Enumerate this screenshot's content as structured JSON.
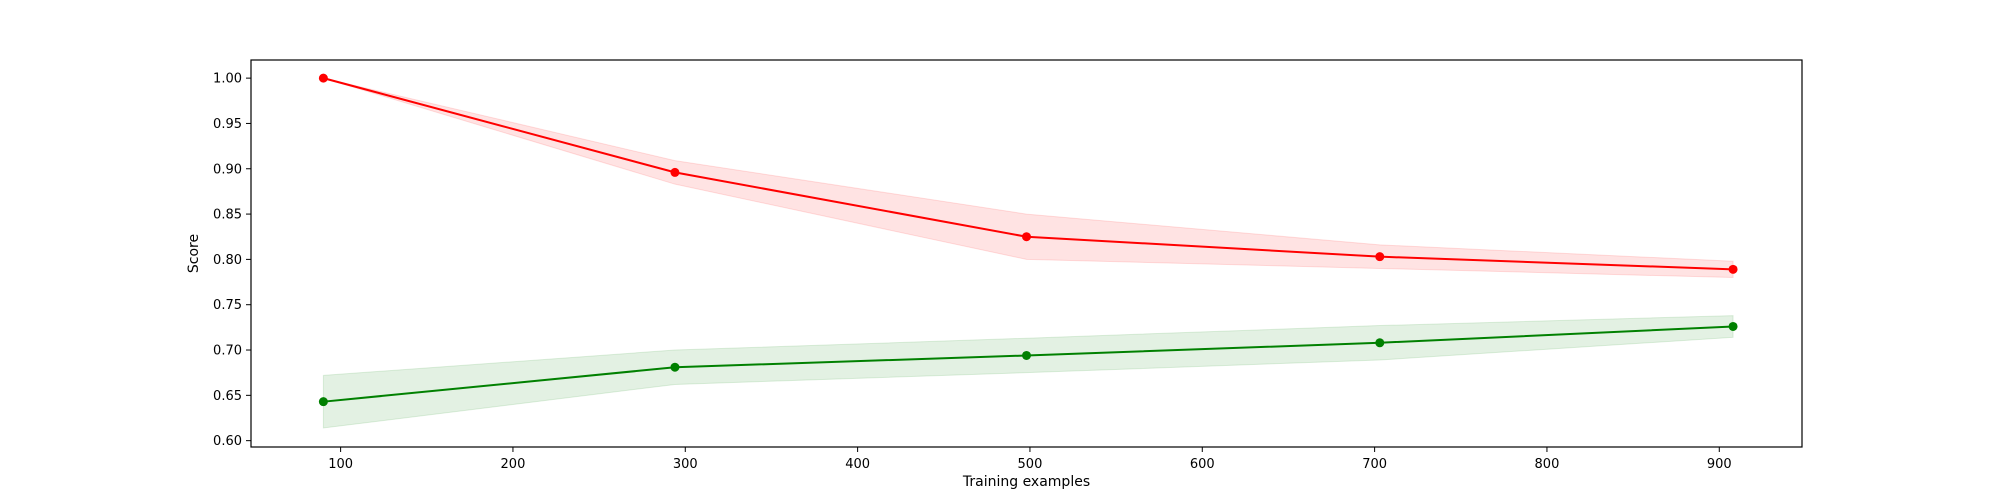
{
  "chart_data": {
    "type": "line",
    "title": "",
    "xlabel": "Training examples",
    "ylabel": "Score",
    "xlim": [
      48,
      948
    ],
    "ylim": [
      0.593,
      1.02
    ],
    "xticks": [
      100,
      200,
      300,
      400,
      500,
      600,
      700,
      800,
      900
    ],
    "yticks": [
      0.6,
      0.65,
      0.7,
      0.75,
      0.8,
      0.85,
      0.9,
      0.95,
      1.0
    ],
    "grid": false,
    "x": [
      90,
      294,
      498,
      703,
      908
    ],
    "series": [
      {
        "color": "#ff0000",
        "band_color": "#ff0000",
        "values": [
          1.0,
          0.896,
          0.825,
          0.803,
          0.789
        ],
        "lower": [
          1.0,
          0.883,
          0.8,
          0.79,
          0.78
        ],
        "upper": [
          1.0,
          0.909,
          0.85,
          0.816,
          0.798
        ]
      },
      {
        "color": "#008000",
        "band_color": "#008000",
        "values": [
          0.643,
          0.681,
          0.694,
          0.708,
          0.726
        ],
        "lower": [
          0.614,
          0.662,
          0.675,
          0.689,
          0.714
        ],
        "upper": [
          0.672,
          0.7,
          0.713,
          0.727,
          0.738
        ]
      }
    ]
  }
}
